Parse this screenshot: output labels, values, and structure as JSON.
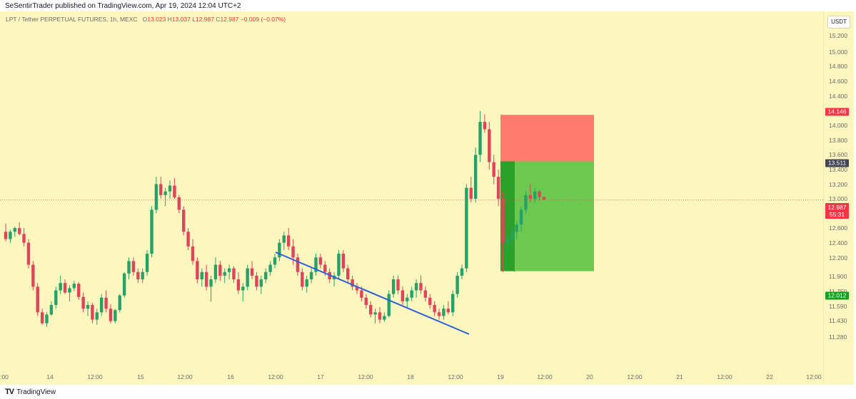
{
  "header": {
    "published_text": "SeSentirTrader published on TradingView.com, Apr 19, 2024 12:04 UTC+2"
  },
  "legend": {
    "symbol": "LPT / Tether PERPETUAL FUTURES, 1h, MEXC",
    "o_label": "O",
    "o_value": "13.023",
    "h_label": "H",
    "h_value": "13.037",
    "l_label": "L",
    "l_value": "12.987",
    "c_label": "C",
    "c_value": "12.987",
    "change": "−0.009 (−0.07%)"
  },
  "currency_button": "USDT",
  "price_axis": {
    "ticks": [
      "15.200",
      "15.000",
      "14.800",
      "14.600",
      "14.400",
      "14.200",
      "14.000",
      "13.800",
      "13.600",
      "13.400",
      "13.200",
      "13.000",
      "12.800",
      "12.600",
      "12.400",
      "12.200",
      "11.900",
      "11.750",
      "11.590",
      "11.430",
      "11.280"
    ],
    "stop_label": "14.146",
    "entry_label": "13.511",
    "last_price": "12.987",
    "countdown": "55:31",
    "target_label": "12.012"
  },
  "time_axis": {
    "ticks": [
      ":00",
      "14",
      "12:00",
      "15",
      "12:00",
      "16",
      "12:00",
      "17",
      "12:00",
      "18",
      "12:00",
      "19",
      "12:00",
      "20",
      "12:00",
      "21",
      "12:00",
      "22",
      "12:00"
    ]
  },
  "colors": {
    "background": "#fdf6bf",
    "up_candle": "#26a269",
    "down_candle": "#e0445a",
    "stop_zone": "#ff7b6b",
    "target_zone": "#6cc84e",
    "trendline": "#2f5fd6"
  },
  "chart_data": {
    "type": "candlestick",
    "symbol": "LPT / Tether PERPETUAL FUTURES",
    "interval": "1h",
    "exchange": "MEXC",
    "y_axis": "linear",
    "last_price": 12.987,
    "position_tool": {
      "side": "short",
      "entry": 13.511,
      "stop": 14.146,
      "target": 12.012
    },
    "candles_approx": [
      [
        12.55,
        12.66,
        12.42,
        12.45
      ],
      [
        12.45,
        12.58,
        12.4,
        12.55
      ],
      [
        12.55,
        12.62,
        12.48,
        12.6
      ],
      [
        12.6,
        12.68,
        12.5,
        12.52
      ],
      [
        12.52,
        12.6,
        12.35,
        12.4
      ],
      [
        12.4,
        12.45,
        12.05,
        12.1
      ],
      [
        12.1,
        12.15,
        11.75,
        11.8
      ],
      [
        11.8,
        11.85,
        11.4,
        11.45
      ],
      [
        11.45,
        11.5,
        11.28,
        11.3
      ],
      [
        11.3,
        11.45,
        11.25,
        11.42
      ],
      [
        11.42,
        11.6,
        11.4,
        11.55
      ],
      [
        11.55,
        11.8,
        11.5,
        11.75
      ],
      [
        11.75,
        11.95,
        11.7,
        11.85
      ],
      [
        11.85,
        11.9,
        11.7,
        11.72
      ],
      [
        11.72,
        11.82,
        11.6,
        11.78
      ],
      [
        11.78,
        11.88,
        11.74,
        11.84
      ],
      [
        11.84,
        11.86,
        11.62,
        11.66
      ],
      [
        11.66,
        11.72,
        11.45,
        11.5
      ],
      [
        11.5,
        11.6,
        11.4,
        11.55
      ],
      [
        11.55,
        11.58,
        11.3,
        11.35
      ],
      [
        11.35,
        11.5,
        11.28,
        11.45
      ],
      [
        11.45,
        11.7,
        11.4,
        11.65
      ],
      [
        11.65,
        11.75,
        11.45,
        11.5
      ],
      [
        11.5,
        11.56,
        11.3,
        11.33
      ],
      [
        11.33,
        11.5,
        11.3,
        11.48
      ],
      [
        11.48,
        11.7,
        11.45,
        11.68
      ],
      [
        11.68,
        12.0,
        11.65,
        11.98
      ],
      [
        11.98,
        12.2,
        11.9,
        12.15
      ],
      [
        12.15,
        12.2,
        11.95,
        12.0
      ],
      [
        12.0,
        12.05,
        11.85,
        11.9
      ],
      [
        11.9,
        12.05,
        11.85,
        12.0
      ],
      [
        12.0,
        12.3,
        11.95,
        12.25
      ],
      [
        12.25,
        12.9,
        12.2,
        12.85
      ],
      [
        12.85,
        13.3,
        12.8,
        13.2
      ],
      [
        13.2,
        13.3,
        13.0,
        13.05
      ],
      [
        13.05,
        13.15,
        12.9,
        13.1
      ],
      [
        13.1,
        13.25,
        13.0,
        13.18
      ],
      [
        13.18,
        13.28,
        13.0,
        13.02
      ],
      [
        13.02,
        13.05,
        12.8,
        12.85
      ],
      [
        12.85,
        12.9,
        12.5,
        12.55
      ],
      [
        12.55,
        12.6,
        12.3,
        12.35
      ],
      [
        12.35,
        12.45,
        12.1,
        12.15
      ],
      [
        12.15,
        12.2,
        11.85,
        11.9
      ],
      [
        11.9,
        12.05,
        11.8,
        12.0
      ],
      [
        12.0,
        12.1,
        11.75,
        11.8
      ],
      [
        11.8,
        11.95,
        11.6,
        11.9
      ],
      [
        11.9,
        12.2,
        11.85,
        12.1
      ],
      [
        12.1,
        12.15,
        11.88,
        11.95
      ],
      [
        11.95,
        12.05,
        11.85,
        12.0
      ],
      [
        12.0,
        12.1,
        11.9,
        12.05
      ],
      [
        12.05,
        12.08,
        11.85,
        11.9
      ],
      [
        11.9,
        12.0,
        11.7,
        11.75
      ],
      [
        11.75,
        11.85,
        11.6,
        11.8
      ],
      [
        11.8,
        12.1,
        11.75,
        12.05
      ],
      [
        12.05,
        12.15,
        11.9,
        11.95
      ],
      [
        11.95,
        12.0,
        11.75,
        11.8
      ],
      [
        11.8,
        11.95,
        11.7,
        11.9
      ],
      [
        11.9,
        12.05,
        11.85,
        12.0
      ],
      [
        12.0,
        12.15,
        11.95,
        12.1
      ],
      [
        12.1,
        12.25,
        12.05,
        12.2
      ],
      [
        12.2,
        12.45,
        12.15,
        12.4
      ],
      [
        12.4,
        12.55,
        12.3,
        12.5
      ],
      [
        12.5,
        12.6,
        12.3,
        12.35
      ],
      [
        12.35,
        12.45,
        12.1,
        12.2
      ],
      [
        12.2,
        12.25,
        11.95,
        12.0
      ],
      [
        12.0,
        12.05,
        11.75,
        11.8
      ],
      [
        11.8,
        11.95,
        11.72,
        11.9
      ],
      [
        11.9,
        12.05,
        11.85,
        12.0
      ],
      [
        12.0,
        12.25,
        11.95,
        12.2
      ],
      [
        12.2,
        12.25,
        12.05,
        12.1
      ],
      [
        12.1,
        12.15,
        11.95,
        12.0
      ],
      [
        12.0,
        12.05,
        11.85,
        11.9
      ],
      [
        11.9,
        12.0,
        11.8,
        11.95
      ],
      [
        11.95,
        12.3,
        11.9,
        12.25
      ],
      [
        12.25,
        12.3,
        12.0,
        12.05
      ],
      [
        12.05,
        12.1,
        11.85,
        11.9
      ],
      [
        11.9,
        11.95,
        11.75,
        11.8
      ],
      [
        11.8,
        11.85,
        11.7,
        11.75
      ],
      [
        11.75,
        11.8,
        11.6,
        11.65
      ],
      [
        11.65,
        11.7,
        11.5,
        11.55
      ],
      [
        11.55,
        11.6,
        11.38,
        11.42
      ],
      [
        11.42,
        11.5,
        11.3,
        11.45
      ],
      [
        11.45,
        11.52,
        11.3,
        11.35
      ],
      [
        11.35,
        11.45,
        11.32,
        11.4
      ],
      [
        11.4,
        11.75,
        11.38,
        11.7
      ],
      [
        11.7,
        11.95,
        11.65,
        11.9
      ],
      [
        11.9,
        11.95,
        11.7,
        11.75
      ],
      [
        11.75,
        11.8,
        11.55,
        11.6
      ],
      [
        11.6,
        11.7,
        11.5,
        11.65
      ],
      [
        11.65,
        11.8,
        11.6,
        11.75
      ],
      [
        11.75,
        11.9,
        11.65,
        11.85
      ],
      [
        11.85,
        11.95,
        11.7,
        11.75
      ],
      [
        11.75,
        11.8,
        11.6,
        11.65
      ],
      [
        11.65,
        11.7,
        11.5,
        11.55
      ],
      [
        11.55,
        11.6,
        11.4,
        11.45
      ],
      [
        11.45,
        11.5,
        11.35,
        11.4
      ],
      [
        11.4,
        11.55,
        11.35,
        11.5
      ],
      [
        11.5,
        11.6,
        11.42,
        11.45
      ],
      [
        11.45,
        11.75,
        11.4,
        11.7
      ],
      [
        11.7,
        12.0,
        11.65,
        11.95
      ],
      [
        11.95,
        12.1,
        11.9,
        12.05
      ],
      [
        12.05,
        13.2,
        12.0,
        13.15
      ],
      [
        13.15,
        13.3,
        12.95,
        13.0
      ],
      [
        13.0,
        13.7,
        12.95,
        13.6
      ],
      [
        13.6,
        14.2,
        13.5,
        14.05
      ],
      [
        14.05,
        14.15,
        13.9,
        13.95
      ],
      [
        13.95,
        14.05,
        13.4,
        13.5
      ],
      [
        13.5,
        13.6,
        13.2,
        13.3
      ],
      [
        13.3,
        13.4,
        12.9,
        13.0
      ],
      [
        13.0,
        13.1,
        12.0,
        12.4
      ],
      [
        12.4,
        12.5,
        12.3,
        12.45
      ],
      [
        12.45,
        12.6,
        12.35,
        12.55
      ],
      [
        12.55,
        12.7,
        12.45,
        12.65
      ],
      [
        12.65,
        12.9,
        12.55,
        12.85
      ],
      [
        12.85,
        13.1,
        12.8,
        13.05
      ],
      [
        13.05,
        13.2,
        12.95,
        13.0
      ],
      [
        13.0,
        13.15,
        12.95,
        13.1
      ],
      [
        13.1,
        13.12,
        12.98,
        13.023
      ],
      [
        13.023,
        13.037,
        12.987,
        12.987
      ]
    ],
    "trendline": [
      [
        12.65
      ],
      [
        11.75
      ]
    ]
  }
}
